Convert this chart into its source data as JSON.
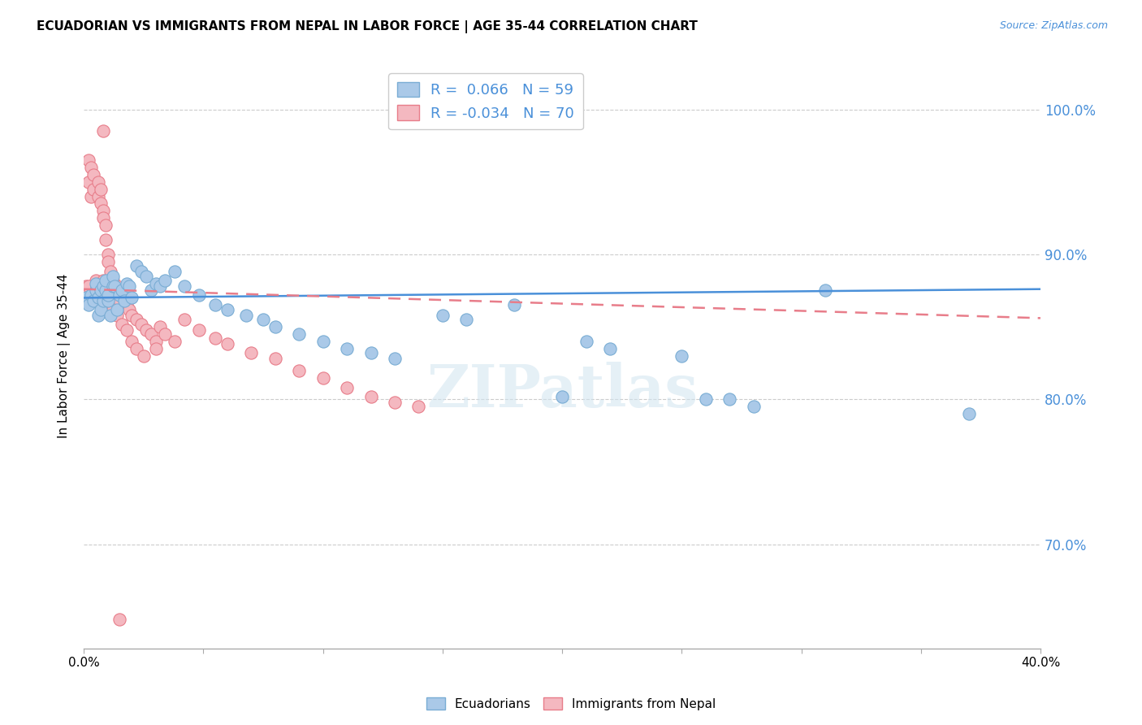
{
  "title": "ECUADORIAN VS IMMIGRANTS FROM NEPAL IN LABOR FORCE | AGE 35-44 CORRELATION CHART",
  "source": "Source: ZipAtlas.com",
  "ylabel": "In Labor Force | Age 35-44",
  "yticks": [
    0.7,
    0.8,
    0.9,
    1.0
  ],
  "ytick_labels": [
    "70.0%",
    "80.0%",
    "90.0%",
    "100.0%"
  ],
  "xmin": 0.0,
  "xmax": 0.4,
  "ymin": 0.628,
  "ymax": 1.032,
  "blue_color": "#aac9e8",
  "blue_marker_edge": "#7aadd4",
  "pink_color": "#f4b8c0",
  "pink_marker_edge": "#e87d8a",
  "blue_line_color": "#4a90d9",
  "pink_line_color": "#e87d8a",
  "r_blue": "0.066",
  "n_blue": "59",
  "r_pink": "-0.034",
  "n_pink": "70",
  "watermark": "ZIPatlas",
  "blue_scatter_x": [
    0.001,
    0.002,
    0.003,
    0.004,
    0.005,
    0.005,
    0.006,
    0.006,
    0.007,
    0.007,
    0.008,
    0.008,
    0.009,
    0.009,
    0.01,
    0.01,
    0.011,
    0.012,
    0.012,
    0.013,
    0.014,
    0.015,
    0.016,
    0.017,
    0.018,
    0.019,
    0.02,
    0.022,
    0.024,
    0.026,
    0.028,
    0.03,
    0.032,
    0.034,
    0.038,
    0.042,
    0.048,
    0.055,
    0.06,
    0.068,
    0.075,
    0.08,
    0.09,
    0.1,
    0.11,
    0.12,
    0.13,
    0.15,
    0.16,
    0.18,
    0.2,
    0.21,
    0.22,
    0.25,
    0.26,
    0.27,
    0.28,
    0.31,
    0.37
  ],
  "blue_scatter_y": [
    0.87,
    0.865,
    0.872,
    0.868,
    0.875,
    0.88,
    0.858,
    0.87,
    0.862,
    0.875,
    0.868,
    0.878,
    0.875,
    0.882,
    0.868,
    0.872,
    0.858,
    0.878,
    0.885,
    0.878,
    0.862,
    0.872,
    0.875,
    0.868,
    0.88,
    0.878,
    0.87,
    0.892,
    0.888,
    0.885,
    0.875,
    0.88,
    0.878,
    0.882,
    0.888,
    0.878,
    0.872,
    0.865,
    0.862,
    0.858,
    0.855,
    0.85,
    0.845,
    0.84,
    0.835,
    0.832,
    0.828,
    0.858,
    0.855,
    0.865,
    0.802,
    0.84,
    0.835,
    0.83,
    0.8,
    0.8,
    0.795,
    0.875,
    0.79
  ],
  "pink_scatter_x": [
    0.001,
    0.001,
    0.002,
    0.002,
    0.003,
    0.003,
    0.004,
    0.004,
    0.005,
    0.005,
    0.006,
    0.006,
    0.007,
    0.007,
    0.008,
    0.008,
    0.009,
    0.009,
    0.01,
    0.01,
    0.011,
    0.011,
    0.012,
    0.012,
    0.013,
    0.014,
    0.015,
    0.016,
    0.017,
    0.018,
    0.019,
    0.02,
    0.022,
    0.024,
    0.026,
    0.028,
    0.03,
    0.032,
    0.034,
    0.038,
    0.042,
    0.048,
    0.055,
    0.06,
    0.07,
    0.08,
    0.09,
    0.1,
    0.11,
    0.12,
    0.13,
    0.14,
    0.002,
    0.003,
    0.004,
    0.005,
    0.006,
    0.007,
    0.008,
    0.01,
    0.012,
    0.014,
    0.016,
    0.018,
    0.02,
    0.022,
    0.025,
    0.03,
    0.015,
    0.008
  ],
  "pink_scatter_y": [
    0.878,
    0.872,
    0.95,
    0.965,
    0.94,
    0.96,
    0.945,
    0.955,
    0.882,
    0.875,
    0.95,
    0.94,
    0.935,
    0.945,
    0.93,
    0.925,
    0.92,
    0.91,
    0.9,
    0.895,
    0.888,
    0.878,
    0.872,
    0.882,
    0.87,
    0.878,
    0.868,
    0.875,
    0.87,
    0.865,
    0.862,
    0.858,
    0.855,
    0.852,
    0.848,
    0.845,
    0.84,
    0.85,
    0.845,
    0.84,
    0.855,
    0.848,
    0.842,
    0.838,
    0.832,
    0.828,
    0.82,
    0.815,
    0.808,
    0.802,
    0.798,
    0.795,
    0.878,
    0.872,
    0.868,
    0.87,
    0.875,
    0.878,
    0.882,
    0.87,
    0.862,
    0.858,
    0.852,
    0.848,
    0.84,
    0.835,
    0.83,
    0.835,
    0.648,
    0.985
  ]
}
